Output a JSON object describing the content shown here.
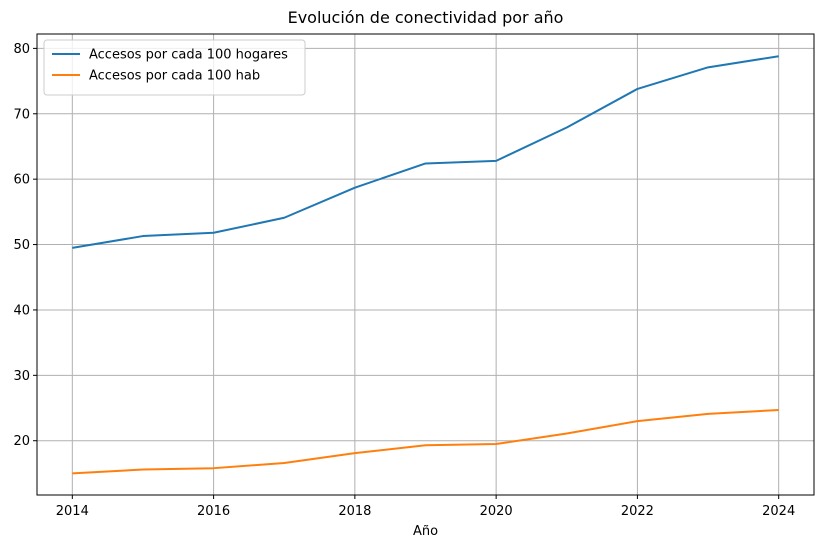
{
  "chart_data": {
    "type": "line",
    "title": "Evolución de conectividad por año",
    "xlabel": "Año",
    "ylabel": "",
    "x": [
      2014,
      2015,
      2016,
      2017,
      2018,
      2019,
      2020,
      2021,
      2022,
      2023,
      2024
    ],
    "xlim": [
      2013.5,
      2024.5
    ],
    "ylim": [
      11.7,
      82.2
    ],
    "xticks": [
      2014,
      2016,
      2018,
      2020,
      2022,
      2024
    ],
    "yticks": [
      20,
      30,
      40,
      50,
      60,
      70,
      80
    ],
    "grid": true,
    "legend_position": "top-left",
    "series": [
      {
        "name": "Accesos por cada 100 hogares",
        "color": "#1f77b4",
        "values": [
          49.5,
          51.3,
          51.8,
          54.1,
          58.7,
          62.4,
          62.8,
          67.9,
          73.8,
          77.1,
          78.8
        ]
      },
      {
        "name": "Accesos por cada 100 hab",
        "color": "#ff7f0e",
        "values": [
          15.0,
          15.6,
          15.8,
          16.6,
          18.1,
          19.3,
          19.5,
          21.1,
          23.0,
          24.1,
          24.7
        ]
      }
    ]
  }
}
